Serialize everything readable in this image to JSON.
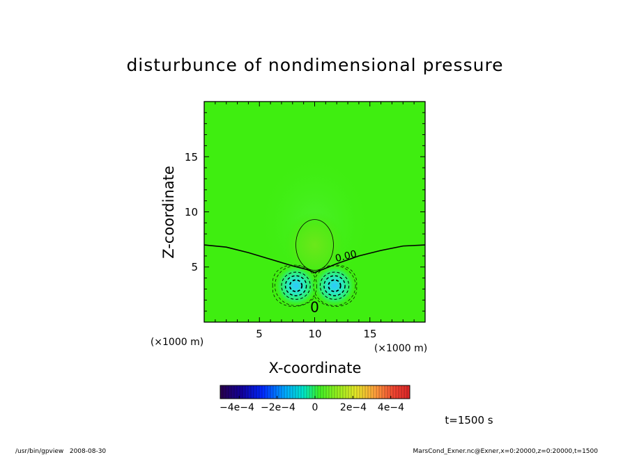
{
  "chart_data": {
    "type": "heatmap",
    "title": "disturbunce of nondimensional pressure",
    "xlabel": "X-coordinate",
    "ylabel": "Z-coordinate",
    "x_unit_left": "(×1000 m)",
    "x_unit_right": "(×1000 m)",
    "xlim": [
      0,
      20
    ],
    "ylim": [
      0,
      20
    ],
    "x_ticks": [
      5,
      10,
      15
    ],
    "y_ticks": [
      5,
      10,
      15
    ],
    "x_tick_labels": [
      "5",
      "10",
      "15"
    ],
    "y_tick_labels": [
      "5",
      "10",
      "15"
    ],
    "contour_labels": [
      {
        "text": "0.00",
        "x": 12.9,
        "z": 5.7,
        "rotate": -14
      },
      {
        "text": "0",
        "x": 10.0,
        "z": 0.9,
        "rotate": 0
      }
    ],
    "features": {
      "background_level": 0.0,
      "positive_bubble": {
        "x": 10.0,
        "z": 7.0,
        "amplitude": 0.00012
      },
      "negative_lobes": [
        {
          "x": 8.3,
          "z": 3.3,
          "amplitude": -0.0003
        },
        {
          "x": 11.8,
          "z": 3.3,
          "amplitude": -0.0003
        }
      ]
    },
    "colorbar": {
      "range": [
        -0.0005,
        0.0005
      ],
      "tick_labels": [
        "−4e−4",
        "−2e−4",
        "0",
        "2e−4",
        "4e−4"
      ],
      "tick_values": [
        -0.0004,
        -0.0002,
        0,
        0.0002,
        0.0004
      ]
    },
    "time_label": "t=1500 s",
    "footer_left": "/usr/bin/gpview   2008-08-30",
    "footer_right": "MarsCond_Exner.nc@Exner,x=0:20000,z=0:20000,t=1500"
  }
}
